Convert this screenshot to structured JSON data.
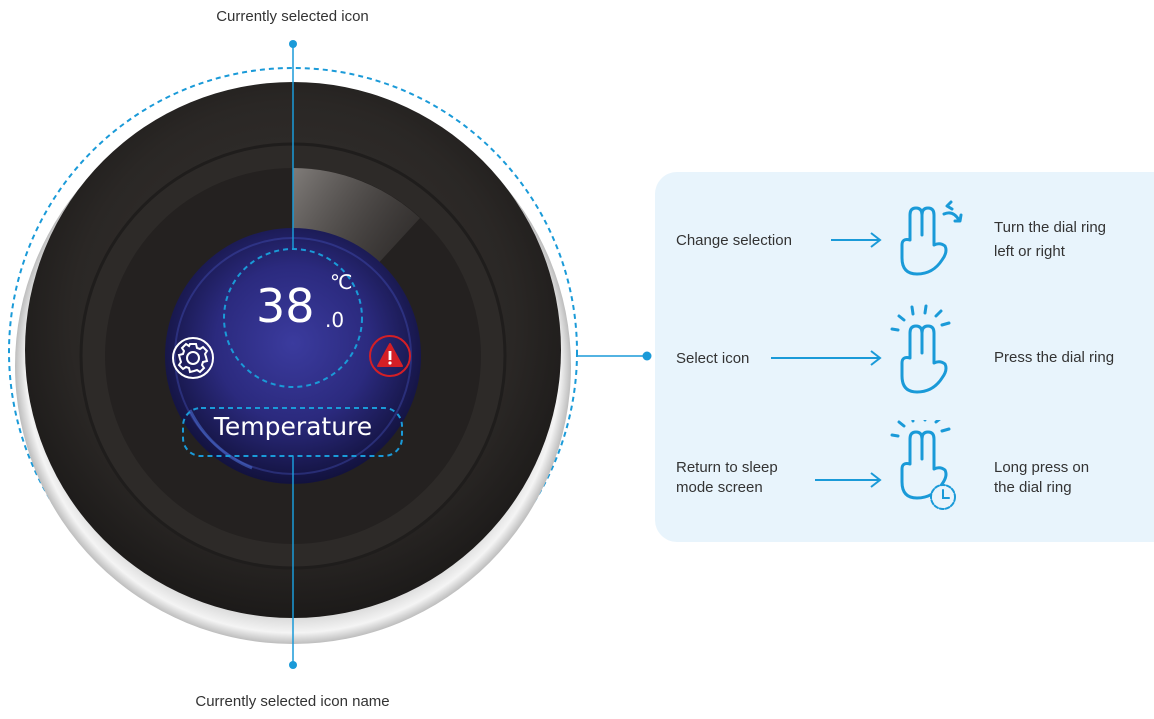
{
  "callouts": {
    "top_label": "Currently selected icon",
    "bottom_label": "Currently selected icon name"
  },
  "display": {
    "temperature_value": "38",
    "temperature_decimal": ".0",
    "temperature_unit": "℃",
    "selected_icon_name": "Temperature",
    "left_icon": "gear-icon",
    "right_icon": "warning-icon"
  },
  "instructions": [
    {
      "action": "Change selection",
      "gesture": "hand-rotate-icon",
      "result_line1": "Turn the dial ring",
      "result_line2": "left or right"
    },
    {
      "action": "Select icon",
      "gesture": "hand-press-icon",
      "result_line1": "Press the dial ring",
      "result_line2": ""
    },
    {
      "action_line1": "Return to sleep",
      "action_line2": "mode screen",
      "gesture": "hand-long-press-icon",
      "result_line1": "Long press on",
      "result_line2": "the dial ring"
    }
  ],
  "colors": {
    "accent": "#1a9ad8",
    "panel_bg": "#e8f4fc",
    "dial_body": "#2b2826",
    "screen_center": "#2f2a86",
    "warning": "#d41f26"
  }
}
